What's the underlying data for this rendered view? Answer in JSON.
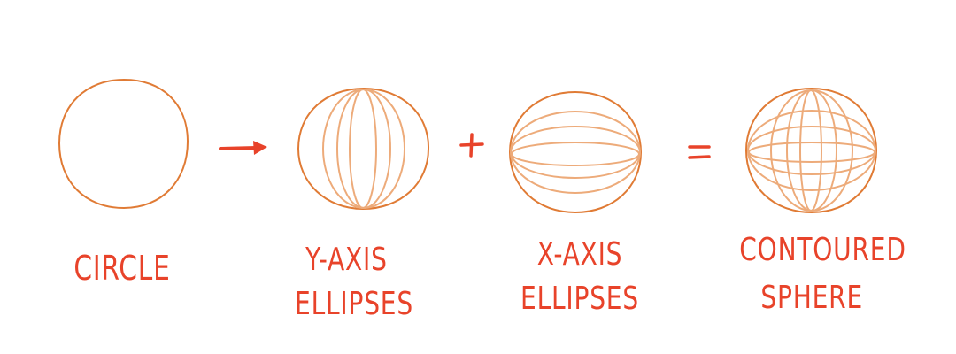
{
  "colors": {
    "outline": "#e07b35",
    "inner": "#edab7a",
    "label": "#e8432a"
  },
  "steps": [
    {
      "id": "circle",
      "lines": [
        "CIRCLE"
      ]
    },
    {
      "id": "y-axis",
      "lines": [
        "Y-AXIS",
        "ELLIPSES"
      ]
    },
    {
      "id": "x-axis",
      "lines": [
        "X-AXIS",
        "ELLIPSES"
      ]
    },
    {
      "id": "sphere",
      "lines": [
        "CONTOURED",
        "SPHERE"
      ]
    }
  ],
  "operators": {
    "arrow": "arrow-icon",
    "plus": "+",
    "equals": "="
  }
}
